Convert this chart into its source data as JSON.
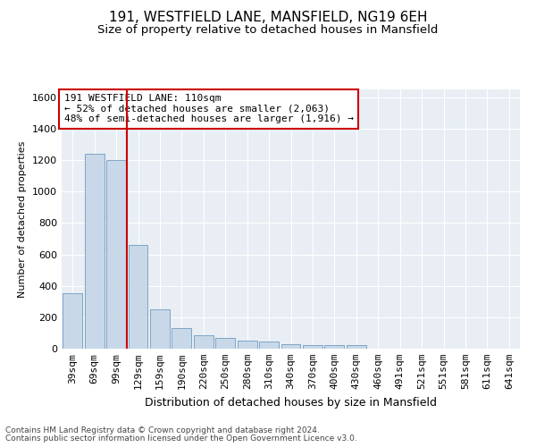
{
  "title1": "191, WESTFIELD LANE, MANSFIELD, NG19 6EH",
  "title2": "Size of property relative to detached houses in Mansfield",
  "xlabel": "Distribution of detached houses by size in Mansfield",
  "ylabel": "Number of detached properties",
  "categories": [
    "39sqm",
    "69sqm",
    "99sqm",
    "129sqm",
    "159sqm",
    "190sqm",
    "220sqm",
    "250sqm",
    "280sqm",
    "310sqm",
    "340sqm",
    "370sqm",
    "400sqm",
    "430sqm",
    "460sqm",
    "491sqm",
    "521sqm",
    "551sqm",
    "581sqm",
    "611sqm",
    "641sqm"
  ],
  "values": [
    350,
    1240,
    1200,
    660,
    250,
    130,
    85,
    70,
    52,
    48,
    28,
    22,
    20,
    20,
    0,
    0,
    0,
    0,
    0,
    0,
    0
  ],
  "bar_color": "#c8d8e8",
  "bar_edge_color": "#5b8db8",
  "annotation_text": "191 WESTFIELD LANE: 110sqm\n← 52% of detached houses are smaller (2,063)\n48% of semi-detached houses are larger (1,916) →",
  "annotation_box_color": "#ffffff",
  "annotation_box_edge": "#cc0000",
  "vline_color": "#cc0000",
  "ylim": [
    0,
    1650
  ],
  "yticks": [
    0,
    200,
    400,
    600,
    800,
    1000,
    1200,
    1400,
    1600
  ],
  "footer_line1": "Contains HM Land Registry data © Crown copyright and database right 2024.",
  "footer_line2": "Contains public sector information licensed under the Open Government Licence v3.0.",
  "plot_bg_color": "#e8eef4",
  "title1_fontsize": 11,
  "title2_fontsize": 9.5,
  "xlabel_fontsize": 9,
  "ylabel_fontsize": 8,
  "tick_fontsize": 8,
  "annotation_fontsize": 8,
  "footer_fontsize": 6.5
}
